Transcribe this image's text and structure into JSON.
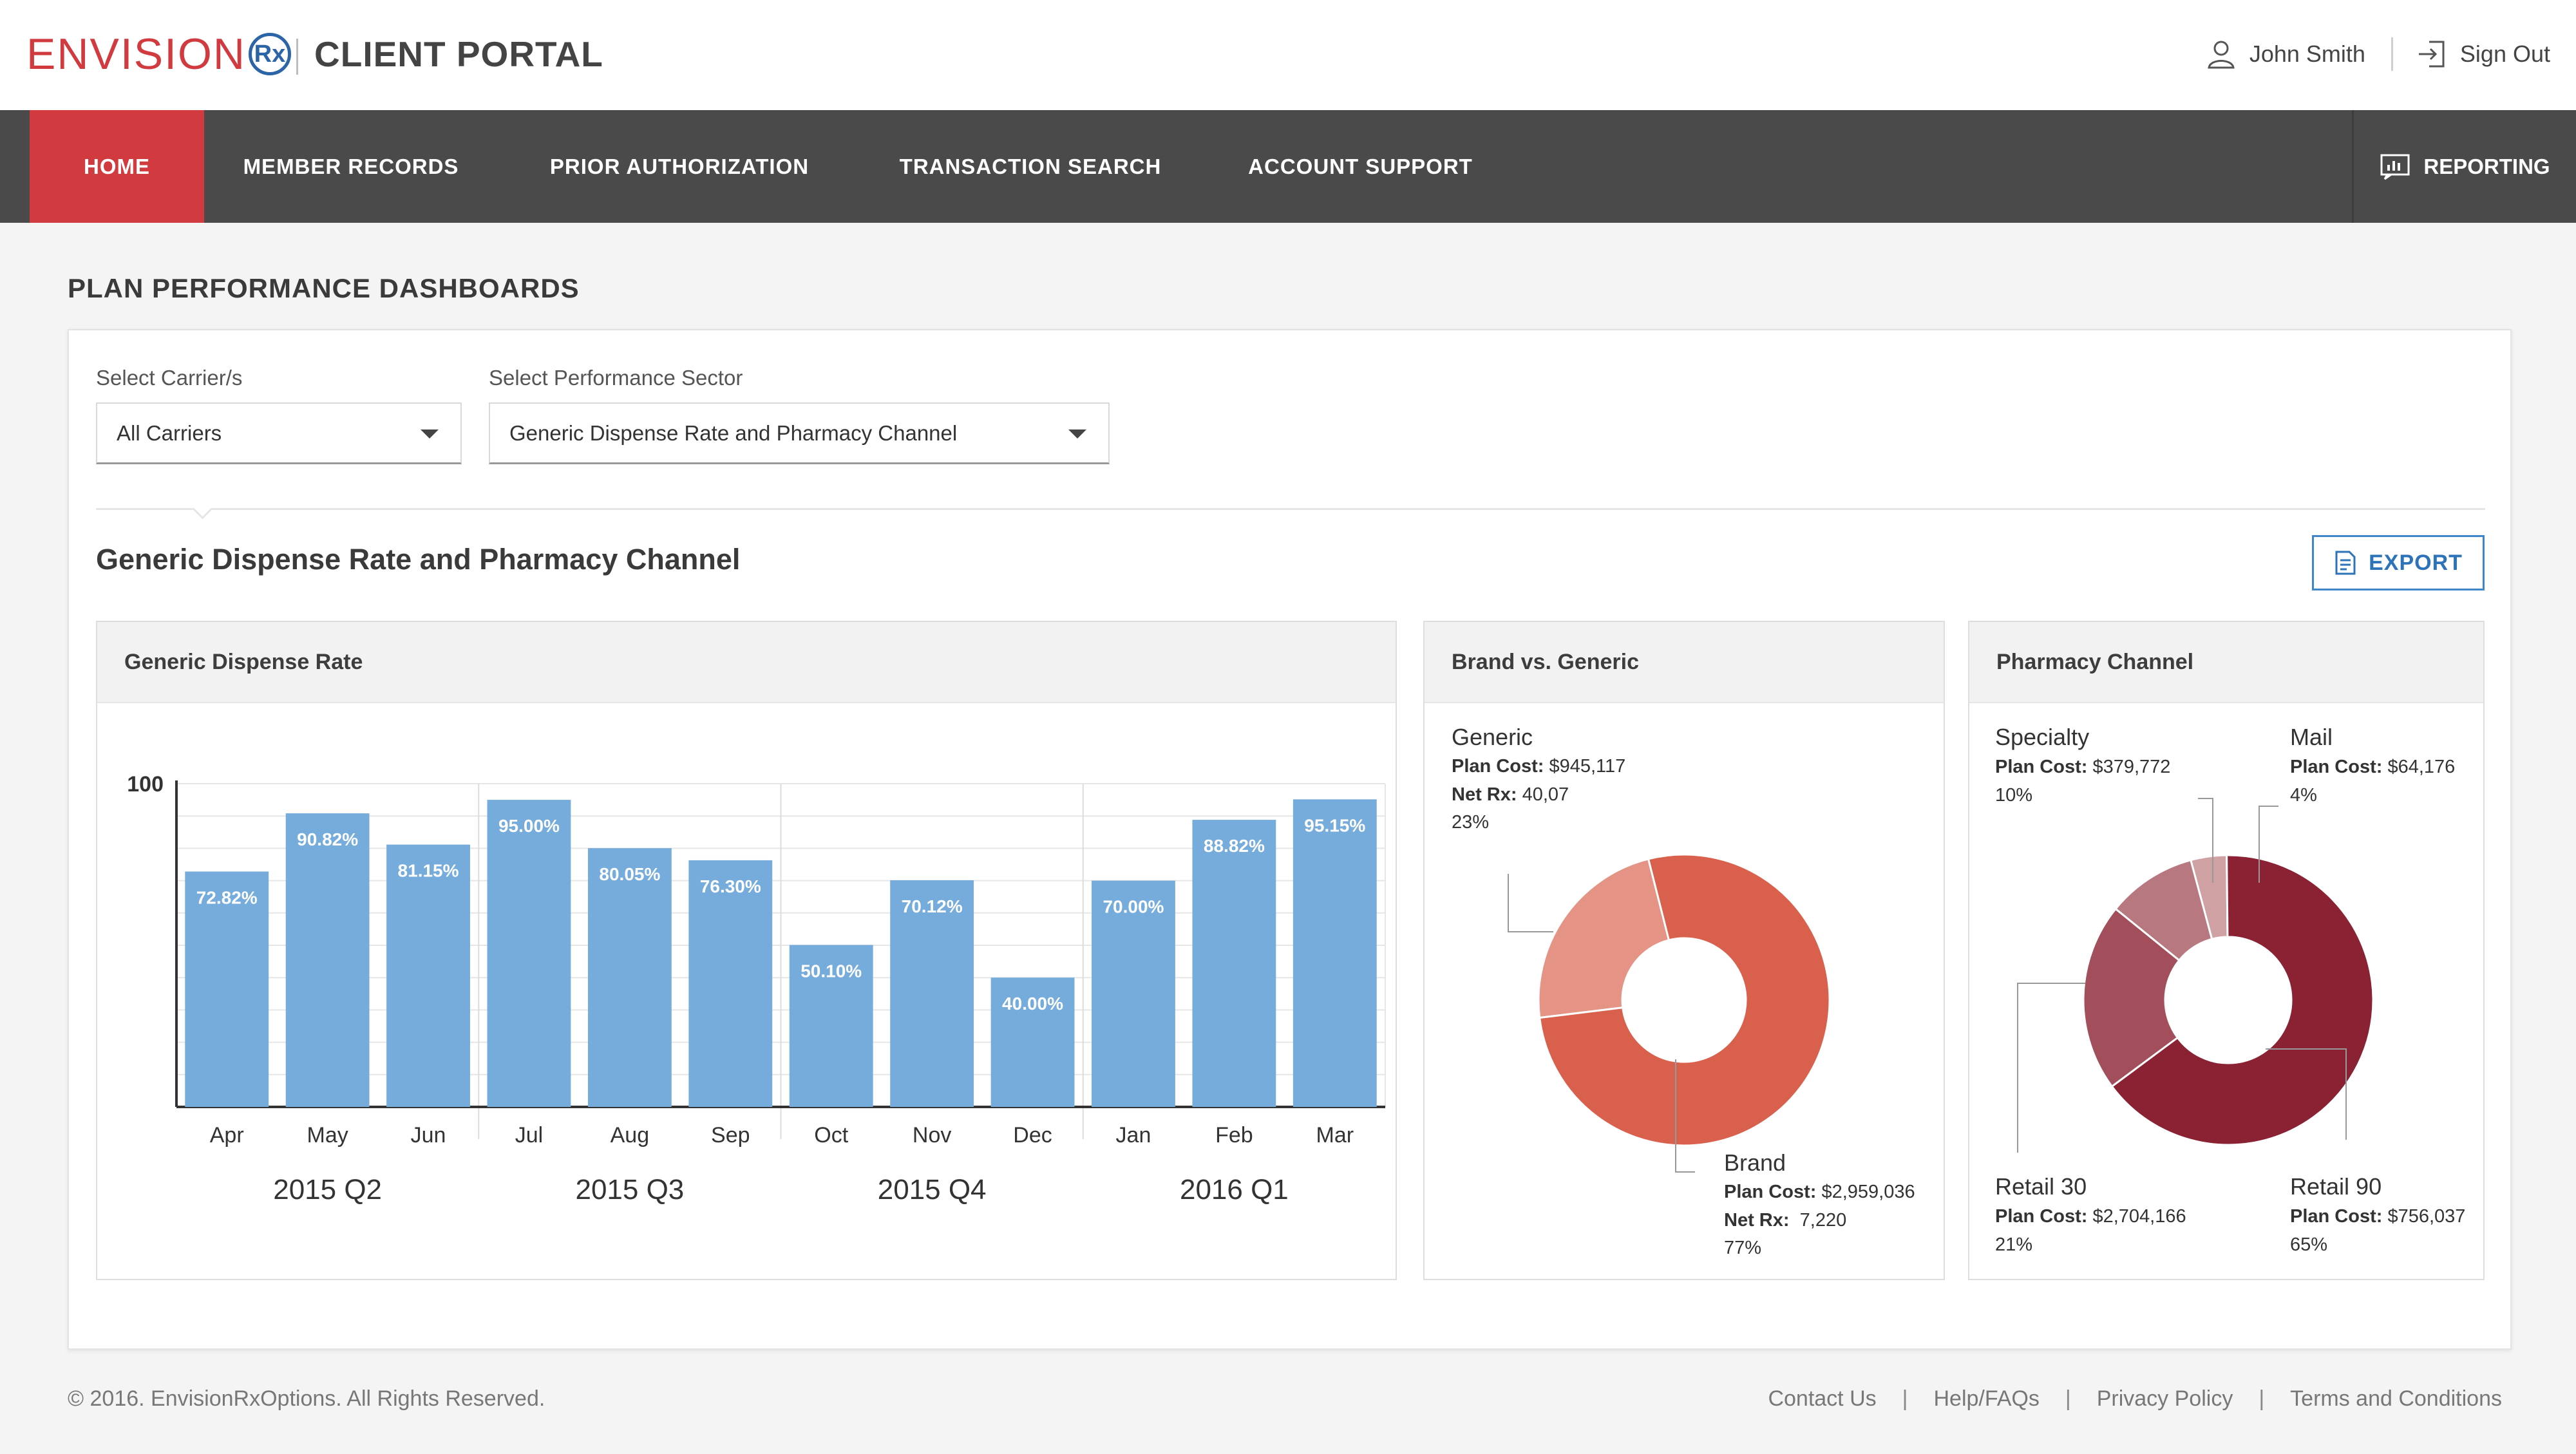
{
  "header": {
    "brand_word": "ENVISION",
    "brand_rx": "Rx",
    "portal_title": "CLIENT PORTAL",
    "user_name": "John Smith",
    "sign_out": "Sign Out"
  },
  "nav": {
    "items": [
      "HOME",
      "MEMBER RECORDS",
      "PRIOR AUTHORIZATION",
      "TRANSACTION SEARCH",
      "ACCOUNT SUPPORT"
    ],
    "active_index": 0,
    "reporting": "REPORTING"
  },
  "page": {
    "heading": "PLAN PERFORMANCE DASHBOARDS",
    "carrier_label": "Select Carrier/s",
    "carrier_value": "All Carriers",
    "sector_label": "Select Performance Sector",
    "sector_value": "Generic Dispense Rate and Pharmacy Channel",
    "section_title": "Generic Dispense Rate and Pharmacy Channel",
    "export_label": "EXPORT"
  },
  "panels": {
    "gdr_title": "Generic Dispense Rate",
    "bvg_title": "Brand vs. Generic",
    "pc_title": "Pharmacy Channel"
  },
  "chart_data": [
    {
      "type": "bar",
      "title": "Generic Dispense Rate",
      "categories": [
        "Apr",
        "May",
        "Jun",
        "Jul",
        "Aug",
        "Sep",
        "Oct",
        "Nov",
        "Dec",
        "Jan",
        "Feb",
        "Mar"
      ],
      "values": [
        72.82,
        90.82,
        81.15,
        95.0,
        80.05,
        76.3,
        50.1,
        70.12,
        40.0,
        70.0,
        88.82,
        95.15
      ],
      "value_labels": [
        "72.82%",
        "90.82%",
        "81.15%",
        "95.00%",
        "80.05%",
        "76.30%",
        "50.10%",
        "70.12%",
        "40.00%",
        "70.00%",
        "88.82%",
        "95.15%"
      ],
      "groups": [
        "2015 Q2",
        "2015 Q3",
        "2015 Q4",
        "2016 Q1"
      ],
      "y_tick": "100",
      "ylim": [
        0,
        100
      ],
      "grid": true,
      "color": "#75acdb"
    },
    {
      "type": "pie",
      "title": "Brand vs. Generic",
      "slices": [
        {
          "name": "Brand",
          "value": 77,
          "plan_cost": "$2,959,036",
          "net_rx": "7,220",
          "percent": "77%",
          "color": "#d9604c"
        },
        {
          "name": "Generic",
          "value": 23,
          "plan_cost": "$945,117",
          "net_rx": "40,07",
          "percent": "23%",
          "color": "#e49384"
        }
      ],
      "plan_cost_label": "Plan Cost:",
      "net_rx_label": "Net Rx:"
    },
    {
      "type": "pie",
      "title": "Pharmacy Channel",
      "slices": [
        {
          "name": "Retail 90",
          "value": 65,
          "plan_cost": "$756,037",
          "percent": "65%",
          "color": "#8a2234"
        },
        {
          "name": "Retail 30",
          "value": 21,
          "plan_cost": "$2,704,166",
          "percent": "21%",
          "color": "#a34e5b"
        },
        {
          "name": "Specialty",
          "value": 10,
          "plan_cost": "$379,772",
          "percent": "10%",
          "color": "#b8787f"
        },
        {
          "name": "Mail",
          "value": 4,
          "plan_cost": "$64,176",
          "percent": "4%",
          "color": "#cfa1a3"
        }
      ],
      "plan_cost_label": "Plan Cost:"
    }
  ],
  "footer": {
    "copyright": "© 2016. EnvisionRxOptions. All Rights Reserved.",
    "links": [
      "Contact Us",
      "Help/FAQs",
      "Privacy Policy",
      "Terms and Conditions"
    ]
  }
}
